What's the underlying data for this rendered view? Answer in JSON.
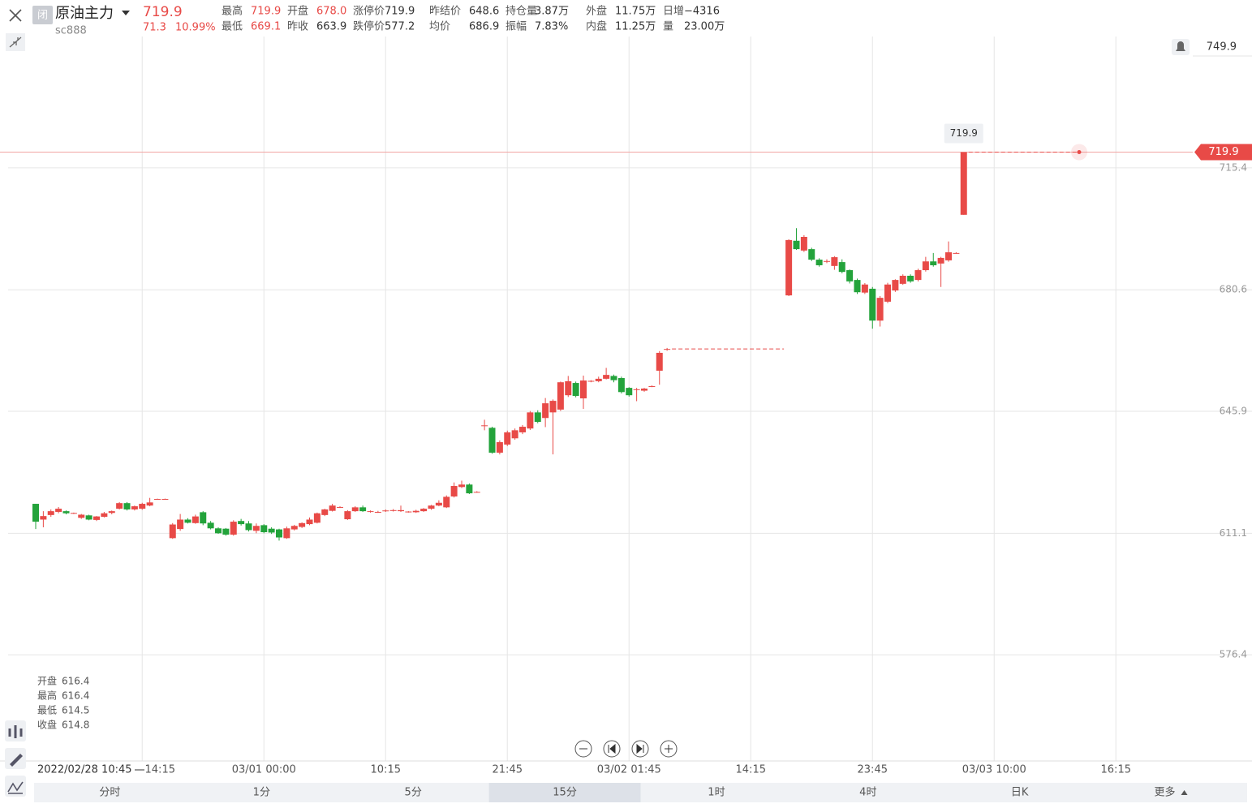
{
  "header": {
    "status": "闭",
    "name": "原油主力",
    "code": "sc888",
    "price": "719.9",
    "change": "71.3",
    "change_pct": "10.99%",
    "stats": [
      {
        "label": "最高",
        "value": "719.9",
        "color": "#e84a47"
      },
      {
        "label": "开盘",
        "value": "678.0",
        "color": "#e84a47"
      },
      {
        "label": "涨停价",
        "value": "719.9",
        "color": "#333333"
      },
      {
        "label": "昨结价",
        "value": "648.6",
        "color": "#333333"
      },
      {
        "label": "持仓量",
        "value": "3.87万",
        "color": "#333333"
      },
      {
        "label": "外盘",
        "value": "11.75万",
        "color": "#333333"
      },
      {
        "label": "日增",
        "value": "−4316",
        "color": "#333333"
      },
      {
        "label": "最低",
        "value": "669.1",
        "color": "#e84a47"
      },
      {
        "label": "昨收",
        "value": "663.9",
        "color": "#333333"
      },
      {
        "label": "跌停价",
        "value": "577.2",
        "color": "#333333"
      },
      {
        "label": "均价",
        "value": "686.9",
        "color": "#333333"
      },
      {
        "label": "振幅",
        "value": "7.83%",
        "color": "#333333"
      },
      {
        "label": "内盘",
        "value": "11.25万",
        "color": "#333333"
      },
      {
        "label": "量",
        "value": "23.00万",
        "color": "#333333"
      }
    ]
  },
  "chart_data": {
    "type": "candlestick",
    "up_color": "#e84a47",
    "down_color": "#23a33b",
    "grid": true,
    "ylim": [
      546.1,
      752.9
    ],
    "yticks": [
      576.4,
      611.1,
      645.9,
      680.6,
      715.4
    ],
    "top_price": 749.9,
    "current_price": 719.9,
    "crosshair_time": "2022/02/28 10:45",
    "tooltip": {
      "labels": [
        "开盘",
        "最高",
        "最低",
        "收盘"
      ],
      "values": [
        616.4,
        616.4,
        614.5,
        614.8
      ]
    },
    "categories": [
      null,
      null,
      null,
      null,
      null,
      null,
      null,
      null,
      null,
      null,
      null,
      null,
      null,
      null,
      "14:15",
      null,
      null,
      null,
      null,
      null,
      null,
      null,
      null,
      null,
      null,
      null,
      null,
      null,
      null,
      null,
      "03/01 00:00",
      null,
      null,
      null,
      null,
      null,
      null,
      null,
      null,
      null,
      null,
      null,
      null,
      null,
      null,
      null,
      "10:15",
      null,
      null,
      null,
      null,
      null,
      null,
      null,
      null,
      null,
      null,
      null,
      null,
      null,
      null,
      null,
      "21:45",
      null,
      null,
      null,
      null,
      null,
      null,
      null,
      null,
      null,
      null,
      null,
      null,
      null,
      null,
      null,
      "03/02 01:45",
      null,
      null,
      null,
      null,
      null,
      null,
      null,
      null,
      null,
      null,
      null,
      null,
      null,
      null,
      null,
      "14:15",
      null,
      null,
      null,
      null,
      null,
      null,
      null,
      null,
      null,
      null,
      null,
      null,
      null,
      null,
      null,
      "23:45",
      null,
      null,
      null,
      null,
      null,
      null,
      null,
      null,
      null,
      null,
      null,
      null,
      null,
      null,
      null,
      "03/03 10:00",
      null,
      null,
      null,
      null,
      null,
      null,
      null,
      null,
      null,
      null,
      null,
      null,
      null,
      null,
      null,
      "16:15",
      null,
      null,
      null,
      null,
      null,
      null,
      null,
      null,
      null,
      null,
      null,
      null,
      null,
      null,
      null,
      null,
      null
    ],
    "ohlc": [
      [
        619.5,
        619.5,
        612.3,
        614.4
      ],
      [
        615.0,
        617.4,
        612.8,
        616.0
      ],
      [
        616.3,
        617.9,
        615.8,
        617.4
      ],
      [
        617.2,
        618.6,
        616.8,
        618.1
      ],
      [
        617.4,
        617.6,
        616.5,
        616.8
      ],
      [
        616.8,
        617.0,
        616.6,
        616.9
      ],
      [
        615.5,
        616.6,
        615.2,
        616.4
      ],
      [
        616.2,
        616.4,
        614.8,
        615.0
      ],
      [
        614.9,
        616.0,
        614.6,
        615.9
      ],
      [
        615.8,
        617.2,
        615.6,
        616.8
      ],
      [
        616.9,
        617.6,
        616.5,
        617.4
      ],
      [
        618.1,
        620.0,
        617.9,
        619.7
      ],
      [
        619.7,
        620.0,
        617.6,
        617.9
      ],
      [
        617.9,
        619.0,
        617.6,
        618.8
      ],
      [
        618.1,
        619.8,
        617.8,
        619.5
      ],
      [
        619.0,
        621.2,
        618.8,
        619.9
      ],
      [
        620.9,
        621.0,
        620.7,
        620.9
      ],
      [
        620.9,
        621.0,
        620.8,
        620.9
      ],
      [
        609.7,
        614.0,
        609.5,
        613.6
      ],
      [
        612.3,
        616.6,
        611.8,
        615.0
      ],
      [
        615.0,
        615.4,
        613.9,
        614.1
      ],
      [
        614.0,
        616.4,
        613.8,
        615.9
      ],
      [
        617.1,
        617.4,
        613.4,
        613.9
      ],
      [
        614.1,
        614.6,
        612.2,
        612.5
      ],
      [
        612.5,
        612.8,
        610.9,
        611.1
      ],
      [
        612.4,
        612.6,
        610.4,
        610.7
      ],
      [
        610.7,
        614.8,
        610.4,
        614.4
      ],
      [
        614.6,
        615.2,
        613.3,
        613.7
      ],
      [
        613.9,
        614.6,
        611.6,
        612.0
      ],
      [
        611.8,
        613.9,
        611.1,
        613.2
      ],
      [
        613.4,
        613.7,
        611.1,
        611.4
      ],
      [
        612.4,
        612.8,
        610.9,
        611.3
      ],
      [
        612.2,
        612.4,
        609.0,
        609.9
      ],
      [
        609.7,
        613.0,
        609.5,
        612.5
      ],
      [
        612.2,
        613.5,
        611.9,
        613.2
      ],
      [
        612.9,
        614.2,
        612.6,
        614.0
      ],
      [
        613.7,
        615.6,
        613.4,
        615.0
      ],
      [
        614.1,
        617.0,
        613.9,
        616.8
      ],
      [
        616.3,
        618.1,
        616.0,
        617.9
      ],
      [
        617.5,
        619.5,
        617.3,
        619.0
      ],
      [
        618.5,
        618.8,
        618.3,
        618.6
      ],
      [
        615.1,
        617.7,
        614.9,
        617.4
      ],
      [
        617.4,
        618.8,
        617.2,
        618.5
      ],
      [
        618.5,
        619.0,
        617.2,
        617.4
      ],
      [
        617.3,
        617.6,
        617.0,
        617.4
      ],
      [
        617.2,
        617.5,
        616.9,
        617.2
      ],
      [
        617.5,
        617.9,
        617.2,
        617.6
      ],
      [
        617.6,
        618.0,
        617.3,
        617.7
      ],
      [
        617.4,
        619.0,
        617.2,
        617.7
      ],
      [
        617.2,
        617.4,
        617.0,
        617.3
      ],
      [
        617.1,
        617.8,
        616.9,
        617.5
      ],
      [
        617.4,
        618.3,
        617.2,
        618.1
      ],
      [
        618.1,
        619.2,
        617.8,
        619.0
      ],
      [
        619.0,
        620.5,
        618.8,
        619.8
      ],
      [
        618.5,
        621.9,
        618.3,
        621.5
      ],
      [
        621.6,
        625.6,
        621.3,
        624.6
      ],
      [
        624.3,
        626.1,
        624.0,
        625.0
      ],
      [
        625.0,
        625.3,
        622.3,
        622.5
      ],
      [
        622.9,
        623.1,
        622.7,
        622.9
      ],
      [
        641.9,
        643.5,
        640.5,
        641.9
      ],
      [
        641.2,
        641.5,
        633.8,
        634.1
      ],
      [
        634.1,
        637.6,
        633.6,
        637.1
      ],
      [
        636.4,
        640.4,
        636.0,
        639.9
      ],
      [
        638.2,
        641.0,
        637.8,
        640.5
      ],
      [
        639.9,
        642.0,
        639.4,
        641.5
      ],
      [
        641.0,
        646.0,
        640.6,
        645.6
      ],
      [
        645.6,
        646.2,
        642.5,
        642.9
      ],
      [
        644.0,
        649.7,
        641.4,
        648.2
      ],
      [
        645.6,
        649.3,
        633.6,
        648.9
      ],
      [
        646.4,
        654.4,
        646.0,
        654.2
      ],
      [
        650.5,
        656.0,
        650.0,
        654.5
      ],
      [
        654.0,
        654.4,
        649.9,
        650.3
      ],
      [
        649.6,
        656.1,
        646.6,
        654.7
      ],
      [
        654.5,
        654.8,
        654.2,
        654.6
      ],
      [
        654.5,
        655.8,
        654.2,
        655.2
      ],
      [
        655.2,
        658.3,
        655.0,
        656.3
      ],
      [
        656.0,
        656.4,
        654.2,
        654.8
      ],
      [
        655.4,
        655.8,
        651.0,
        651.4
      ],
      [
        652.6,
        652.8,
        650.1,
        650.5
      ],
      [
        652.2,
        652.6,
        648.8,
        652.2
      ],
      [
        651.8,
        652.6,
        651.5,
        652.4
      ],
      [
        653.1,
        653.3,
        652.8,
        653.1
      ],
      [
        657.5,
        663.1,
        653.5,
        662.6
      ],
      [
        663.5,
        664.0,
        663.2,
        663.7
      ],
      null,
      null,
      null,
      null,
      null,
      null,
      null,
      null,
      null,
      null,
      null,
      null,
      null,
      null,
      null,
      [
        679.0,
        695.0,
        678.8,
        694.8
      ],
      [
        694.6,
        698.2,
        692.0,
        692.2
      ],
      [
        691.8,
        696.2,
        691.4,
        695.7
      ],
      [
        692.2,
        692.6,
        688.8,
        689.2
      ],
      [
        689.2,
        689.6,
        687.2,
        687.6
      ],
      [
        688.8,
        689.3,
        688.2,
        688.8
      ],
      [
        687.4,
        690.2,
        686.3,
        689.9
      ],
      [
        688.5,
        689.3,
        685.3,
        685.7
      ],
      [
        686.2,
        686.4,
        682.4,
        683.0
      ],
      [
        683.4,
        683.8,
        679.4,
        679.9
      ],
      [
        679.8,
        682.5,
        679.4,
        682.1
      ],
      [
        680.9,
        681.4,
        669.5,
        671.8
      ],
      [
        671.8,
        678.8,
        670.1,
        678.3
      ],
      [
        677.2,
        682.6,
        676.8,
        682.1
      ],
      [
        680.4,
        683.6,
        680.0,
        683.4
      ],
      [
        682.3,
        685.0,
        682.0,
        684.6
      ],
      [
        684.6,
        685.0,
        682.6,
        683.0
      ],
      [
        683.4,
        686.6,
        683.0,
        686.2
      ],
      [
        686.2,
        690.0,
        685.8,
        688.7
      ],
      [
        688.7,
        691.1,
        687.2,
        687.6
      ],
      [
        688.1,
        690.0,
        681.4,
        689.7
      ],
      [
        689.0,
        694.4,
        688.6,
        691.3
      ],
      [
        691.1,
        691.3,
        690.9,
        691.1
      ],
      [
        702.0,
        719.9,
        702.0,
        719.9
      ],
      null,
      null,
      null,
      null,
      null,
      null,
      null,
      null,
      null,
      null,
      null,
      null,
      null,
      null,
      null,
      null,
      null,
      null,
      null,
      null,
      null,
      null,
      null,
      null,
      null,
      null,
      null,
      null,
      null,
      null,
      null,
      null,
      null,
      null,
      null,
      null,
      null
    ]
  },
  "tabs": {
    "items": [
      "分时",
      "1分",
      "5分",
      "15分",
      "1时",
      "4时",
      "日K",
      "更多"
    ],
    "active": "15分"
  }
}
